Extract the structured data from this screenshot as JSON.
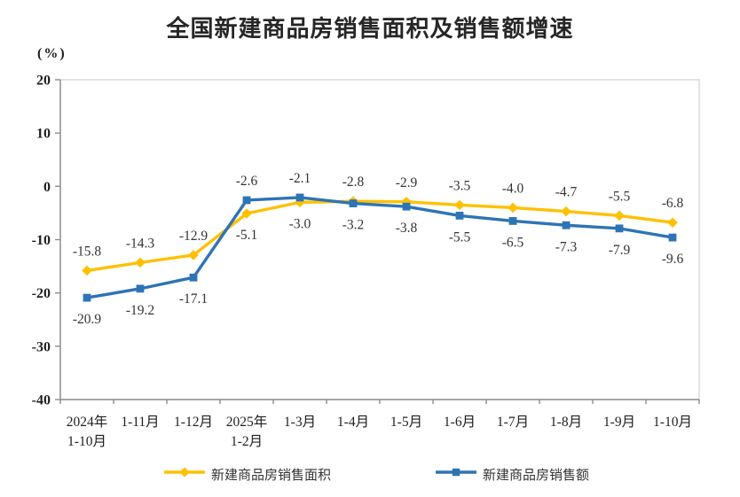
{
  "chart_data": {
    "type": "line",
    "title": "全国新建商品房销售面积及销售额增速",
    "unit_label": "(%)",
    "xlabel": "",
    "ylabel": "(%)",
    "ylim": [
      -40,
      20
    ],
    "y_ticks": [
      20,
      10,
      0,
      -10,
      -20,
      -30,
      -40
    ],
    "grid": false,
    "legend_position": "bottom",
    "categories": [
      [
        "2024年",
        "1-10月"
      ],
      [
        "1-11月"
      ],
      [
        "1-12月"
      ],
      [
        "2025年",
        "1-2月"
      ],
      [
        "1-3月"
      ],
      [
        "1-4月"
      ],
      [
        "1-5月"
      ],
      [
        "1-6月"
      ],
      [
        "1-7月"
      ],
      [
        "1-8月"
      ],
      [
        "1-9月"
      ],
      [
        "1-10月"
      ]
    ],
    "series": [
      {
        "name": "新建商品房销售面积",
        "marker": "diamond",
        "color": "#FFC000",
        "values": [
          -15.8,
          -14.3,
          -12.9,
          -5.1,
          -3.0,
          -2.8,
          -2.9,
          -3.5,
          -4.0,
          -4.7,
          -5.5,
          -6.8
        ]
      },
      {
        "name": "新建商品房销售额",
        "marker": "square",
        "color": "#2E74B5",
        "values": [
          -20.9,
          -19.2,
          -17.1,
          -2.6,
          -2.1,
          -3.2,
          -3.8,
          -5.5,
          -6.5,
          -7.3,
          -7.9,
          -9.6
        ]
      }
    ],
    "colors": {
      "title_text": "#262626",
      "axis_line": "#8C8C8C",
      "plot_border": "#D9D9D9",
      "axis_text": "#1F1F1F",
      "data_label_text": "#333333",
      "background": "#FFFFFF"
    }
  }
}
